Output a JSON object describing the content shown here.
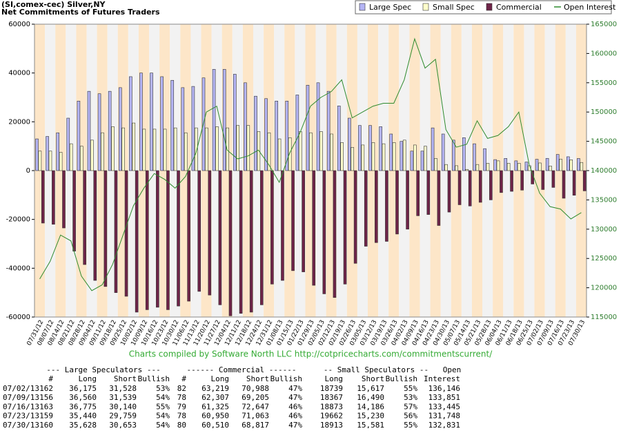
{
  "chart_data": {
    "type": "bar",
    "title": "(SI,comex-cec) Silver,NY",
    "subtitle": "Net Commitments of Futures Traders",
    "credit": "Charts compiled by Software North LLC  http://cotpricecharts.com/commitmentscurrent/",
    "categories": [
      "07/31/12",
      "08/07/12",
      "08/14/12",
      "08/21/12",
      "08/28/12",
      "09/04/12",
      "09/11/12",
      "09/18/12",
      "09/25/12",
      "10/02/12",
      "10/09/12",
      "10/16/12",
      "10/23/12",
      "10/30/12",
      "11/06/12",
      "11/13/12",
      "11/20/12",
      "11/27/12",
      "12/04/12",
      "12/11/12",
      "12/18/12",
      "12/24/12",
      "12/31/12",
      "01/08/13",
      "01/15/13",
      "01/22/13",
      "01/29/13",
      "02/05/13",
      "02/12/13",
      "02/19/13",
      "02/26/13",
      "03/05/13",
      "03/12/13",
      "03/19/13",
      "03/26/13",
      "04/02/13",
      "04/09/13",
      "04/16/13",
      "04/23/13",
      "04/30/13",
      "05/07/13",
      "05/14/13",
      "05/21/13",
      "05/28/13",
      "06/04/13",
      "06/11/13",
      "06/18/13",
      "06/25/13",
      "07/02/13",
      "07/09/13",
      "07/16/13",
      "07/23/13",
      "07/30/13"
    ],
    "series": [
      {
        "name": "Large Spec",
        "color": "#b4b4f4",
        "values": [
          13000,
          14000,
          15500,
          21500,
          28500,
          32500,
          31500,
          32500,
          34000,
          38500,
          40000,
          40000,
          38500,
          37000,
          34000,
          34500,
          38000,
          41500,
          41500,
          39500,
          36000,
          30500,
          29500,
          28500,
          28500,
          31000,
          35000,
          36000,
          32500,
          26500,
          21500,
          18500,
          18500,
          18000,
          15000,
          12000,
          8000,
          8000,
          17500,
          15000,
          12500,
          13500,
          11000,
          9000,
          4500,
          5000,
          4000,
          3500,
          4647,
          5021,
          6635,
          5681,
          4975
        ]
      },
      {
        "name": "Small Spec",
        "color": "#ffffcc",
        "values": [
          8000,
          8000,
          7500,
          11000,
          10000,
          12500,
          15500,
          18000,
          17500,
          19500,
          17000,
          17000,
          17000,
          17500,
          15500,
          17500,
          17500,
          18000,
          17500,
          18500,
          18500,
          16000,
          15500,
          13000,
          13500,
          16000,
          15500,
          16000,
          15000,
          11500,
          9500,
          10500,
          11500,
          11000,
          11500,
          12500,
          10500,
          10000,
          5000,
          2500,
          2000,
          500,
          2500,
          3000,
          4000,
          3000,
          3000,
          2000,
          3122,
          1877,
          4687,
          4432,
          3332
        ]
      },
      {
        "name": "Commercial",
        "color": "#6e2448",
        "values": [
          -21500,
          -22000,
          -23500,
          -33000,
          -38500,
          -45000,
          -47500,
          -50000,
          -51500,
          -58000,
          -57000,
          -56000,
          -57000,
          -55500,
          -53500,
          -49500,
          -51000,
          -55000,
          -59500,
          -58500,
          -58000,
          -55000,
          -46500,
          -45000,
          -41000,
          -41500,
          -47000,
          -50500,
          -52000,
          -46500,
          -38000,
          -31000,
          -29500,
          -29000,
          -26000,
          -24000,
          -18500,
          -18000,
          -22500,
          -17000,
          -14000,
          -14500,
          -13000,
          -12000,
          -9000,
          -8500,
          -8000,
          -5500,
          -7769,
          -6898,
          -11322,
          -10113,
          -8307
        ]
      },
      {
        "name": "Open Interest",
        "color": "#2e8b2e",
        "axis": "y2",
        "values": [
          121500,
          124500,
          129000,
          128000,
          122000,
          119500,
          120500,
          124000,
          129000,
          134000,
          137000,
          139500,
          138500,
          137000,
          139000,
          143000,
          150000,
          151000,
          143500,
          142000,
          142500,
          143500,
          141000,
          138000,
          143000,
          146500,
          151000,
          152500,
          153500,
          155500,
          149000,
          150000,
          151000,
          151500,
          151500,
          155500,
          162500,
          157500,
          159000,
          147000,
          144000,
          144500,
          148500,
          145500,
          146000,
          147500,
          150000,
          141000,
          136146,
          133851,
          133445,
          131748,
          132831
        ]
      }
    ],
    "ylim": [
      -60000,
      60000
    ],
    "yticks": [
      -60000,
      -40000,
      -20000,
      0,
      20000,
      40000,
      60000
    ],
    "y2lim": [
      115000,
      165000
    ],
    "y2ticks": [
      115000,
      120000,
      125000,
      130000,
      135000,
      140000,
      145000,
      150000,
      155000,
      160000,
      165000
    ],
    "grid": false,
    "legend": "top-right"
  },
  "table": {
    "groups": [
      "--- Large Speculators ---",
      "------ Commercial ------",
      "-- Small Speculators --",
      "Open"
    ],
    "columns": [
      "#",
      "Long",
      "Short",
      "Bullish",
      "#",
      "Long",
      "Short",
      "Bullish",
      "Long",
      "Short",
      "Bullish",
      "Interest"
    ],
    "rows": [
      [
        "07/02/13",
        "162",
        "36,175",
        "31,528",
        "53%",
        "82",
        "63,219",
        "70,988",
        "47%",
        "18739",
        "15,617",
        "55%",
        "136,146"
      ],
      [
        "07/09/13",
        "156",
        "36,560",
        "31,539",
        "54%",
        "78",
        "62,307",
        "69,205",
        "47%",
        "18367",
        "16,490",
        "53%",
        "133,851"
      ],
      [
        "07/16/13",
        "163",
        "36,775",
        "30,140",
        "55%",
        "79",
        "61,325",
        "72,647",
        "46%",
        "18873",
        "14,186",
        "57%",
        "133,445"
      ],
      [
        "07/23/13",
        "159",
        "35,440",
        "29,759",
        "54%",
        "78",
        "60,950",
        "71,063",
        "46%",
        "19662",
        "15,230",
        "56%",
        "131,748"
      ],
      [
        "07/30/13",
        "160",
        "35,628",
        "30,653",
        "54%",
        "80",
        "60,510",
        "68,817",
        "47%",
        "18913",
        "15,581",
        "55%",
        "132,831"
      ]
    ]
  }
}
